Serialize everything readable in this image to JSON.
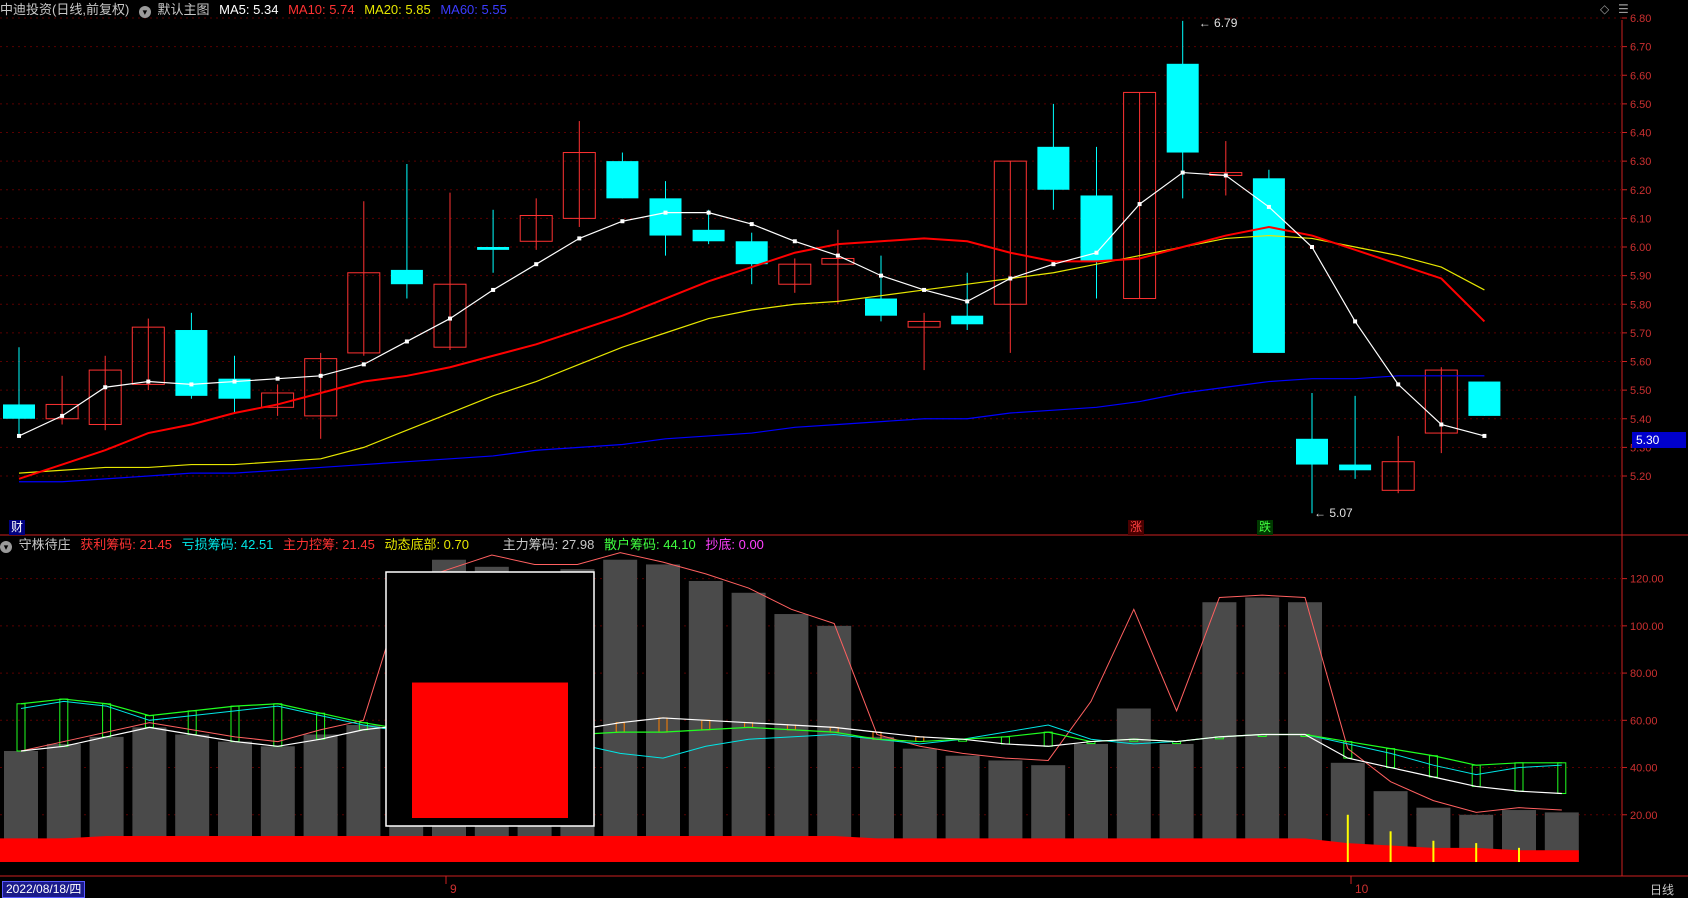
{
  "header": {
    "stock_title": "中迪投资(日线,前复权)",
    "template_name": "默认主图",
    "ma5": "MA5: 5.34",
    "ma10": "MA10: 5.74",
    "ma20": "MA20: 5.85",
    "ma60": "MA60: 5.55"
  },
  "indicator_header": {
    "name": "守株待庄",
    "profit": "获利筹码: 21.45",
    "loss": "亏损筹码: 42.51",
    "control": "主力控筹: 21.45",
    "bottom": "动态底部: 0.70",
    "main_chips": "主力筹码: 27.98",
    "retail_chips": "散户筹码: 44.10",
    "bottom_fish": "抄底: 0.00"
  },
  "colors": {
    "up": "#ff3232",
    "down": "#00ffff",
    "ma5": "#ffffff",
    "ma10": "#ff0000",
    "ma20": "#e6e600",
    "ma60": "#0000ff",
    "grid": "#5a0000",
    "axis": "#cc2020",
    "bar": "#4a4a4a"
  },
  "badges": {
    "cai": "财",
    "zhang": "涨",
    "die": "跌"
  },
  "corner_icons": [
    "diamond-icon",
    "menu-icon"
  ],
  "current_price": "5.30",
  "date_cursor": "2022/08/18/四",
  "month_labels": [
    "9",
    "10"
  ],
  "period": "日线",
  "chart_data": [
    {
      "type": "candlestick",
      "title": "中迪投资(日线,前复权)",
      "y_axis_ticks": [
        "6.80",
        "6.70",
        "6.60",
        "6.50",
        "6.40",
        "6.30",
        "6.20",
        "6.10",
        "6.00",
        "5.90",
        "5.80",
        "5.70",
        "5.60",
        "5.50",
        "5.40",
        "5.30",
        "5.20"
      ],
      "ylim": [
        5.14,
        6.82
      ],
      "high_label": "6.79",
      "low_label": "5.07",
      "ohlc": [
        [
          5.45,
          5.65,
          5.34,
          5.4
        ],
        [
          5.4,
          5.55,
          5.38,
          5.45
        ],
        [
          5.38,
          5.62,
          5.36,
          5.57
        ],
        [
          5.52,
          5.75,
          5.5,
          5.72
        ],
        [
          5.71,
          5.77,
          5.47,
          5.48
        ],
        [
          5.54,
          5.62,
          5.42,
          5.47
        ],
        [
          5.44,
          5.52,
          5.41,
          5.49
        ],
        [
          5.41,
          5.63,
          5.33,
          5.61
        ],
        [
          5.63,
          6.16,
          5.62,
          5.91
        ],
        [
          5.92,
          6.29,
          5.82,
          5.87
        ],
        [
          5.65,
          6.19,
          5.64,
          5.87
        ],
        [
          6.0,
          6.13,
          5.91,
          5.99
        ],
        [
          6.02,
          6.17,
          5.99,
          6.11
        ],
        [
          6.1,
          6.44,
          6.07,
          6.33
        ],
        [
          6.3,
          6.33,
          6.17,
          6.17
        ],
        [
          6.17,
          6.23,
          5.97,
          6.04
        ],
        [
          6.06,
          6.13,
          6.01,
          6.02
        ],
        [
          6.02,
          6.05,
          5.87,
          5.94
        ],
        [
          5.87,
          5.96,
          5.84,
          5.94
        ],
        [
          5.94,
          6.06,
          5.8,
          5.96
        ],
        [
          5.82,
          5.97,
          5.74,
          5.76
        ],
        [
          5.72,
          5.77,
          5.57,
          5.74
        ],
        [
          5.76,
          5.91,
          5.71,
          5.73
        ],
        [
          5.8,
          6.3,
          5.63,
          6.3
        ],
        [
          6.35,
          6.5,
          6.13,
          6.2
        ],
        [
          6.18,
          6.35,
          5.82,
          5.95
        ],
        [
          5.82,
          6.54,
          5.82,
          6.54
        ],
        [
          6.64,
          6.79,
          6.17,
          6.33
        ],
        [
          6.25,
          6.37,
          6.18,
          6.26
        ],
        [
          6.24,
          6.27,
          5.63,
          5.63
        ],
        [
          5.33,
          5.49,
          5.07,
          5.24
        ],
        [
          5.24,
          5.48,
          5.19,
          5.22
        ],
        [
          5.15,
          5.34,
          5.14,
          5.25
        ],
        [
          5.35,
          5.58,
          5.28,
          5.57
        ],
        [
          5.53,
          5.53,
          5.41,
          5.41
        ]
      ],
      "ma5": [
        5.34,
        5.41,
        5.51,
        5.53,
        5.52,
        5.53,
        5.54,
        5.55,
        5.59,
        5.67,
        5.75,
        5.85,
        5.94,
        6.03,
        6.09,
        6.12,
        6.12,
        6.08,
        6.02,
        5.97,
        5.9,
        5.85,
        5.81,
        5.89,
        5.94,
        5.98,
        6.15,
        6.26,
        6.25,
        6.14,
        6.0,
        5.74,
        5.52,
        5.38,
        5.34
      ],
      "ma10": [
        5.19,
        5.24,
        5.29,
        5.35,
        5.38,
        5.42,
        5.45,
        5.49,
        5.53,
        5.55,
        5.58,
        5.62,
        5.66,
        5.71,
        5.76,
        5.82,
        5.88,
        5.93,
        5.98,
        6.01,
        6.02,
        6.03,
        6.02,
        5.98,
        5.95,
        5.95,
        5.96,
        6.0,
        6.04,
        6.07,
        6.04,
        5.99,
        5.94,
        5.89,
        5.74
      ],
      "ma20": [
        5.21,
        5.22,
        5.23,
        5.23,
        5.24,
        5.24,
        5.25,
        5.26,
        5.3,
        5.36,
        5.42,
        5.48,
        5.53,
        5.59,
        5.65,
        5.7,
        5.75,
        5.78,
        5.8,
        5.81,
        5.83,
        5.85,
        5.87,
        5.89,
        5.91,
        5.94,
        5.97,
        6.0,
        6.03,
        6.04,
        6.03,
        6.0,
        5.97,
        5.93,
        5.85
      ],
      "ma60": [
        5.18,
        5.18,
        5.19,
        5.2,
        5.21,
        5.21,
        5.22,
        5.23,
        5.24,
        5.25,
        5.26,
        5.27,
        5.29,
        5.3,
        5.31,
        5.33,
        5.34,
        5.35,
        5.37,
        5.38,
        5.39,
        5.4,
        5.4,
        5.42,
        5.43,
        5.44,
        5.46,
        5.49,
        5.51,
        5.53,
        5.54,
        5.54,
        5.55,
        5.55,
        5.55
      ]
    },
    {
      "type": "bar",
      "title": "守株待庄",
      "y_axis_ticks": [
        "120.00",
        "100.00",
        "80.00",
        "60.00",
        "40.00",
        "20.00"
      ],
      "ylim": [
        0,
        135
      ],
      "gray_bars": [
        47,
        50,
        53,
        57,
        54,
        51,
        49,
        54,
        58,
        118,
        128,
        125,
        122,
        124,
        128,
        126,
        119,
        114,
        105,
        100,
        53,
        48,
        45,
        43,
        41,
        50,
        65,
        50,
        110,
        112,
        110,
        42,
        30,
        23,
        20,
        22,
        21
      ],
      "red_baseline": [
        10,
        10,
        11,
        11,
        11,
        11,
        11,
        11,
        11,
        11,
        11,
        11,
        11,
        11,
        11,
        11,
        11,
        11,
        11,
        11,
        10,
        10,
        10,
        10,
        10,
        10,
        10,
        10,
        10,
        10,
        10,
        8,
        7,
        6,
        6,
        5,
        5
      ],
      "yellow_spikes": [
        0,
        0,
        0,
        0,
        0,
        0,
        0,
        0,
        0,
        0,
        0,
        0,
        0,
        0,
        0,
        0,
        0,
        0,
        0,
        0,
        0,
        0,
        0,
        0,
        0,
        0,
        0,
        0,
        0,
        0,
        0,
        12,
        6,
        3,
        2,
        1,
        0
      ],
      "green_line": [
        67,
        69,
        67,
        62,
        64,
        66,
        67,
        63,
        59,
        56,
        55,
        54,
        53,
        54,
        55,
        55,
        56,
        57,
        56,
        55,
        52,
        51,
        52,
        53,
        55,
        51,
        52,
        51,
        53,
        54,
        54,
        51,
        48,
        45,
        41,
        42,
        42
      ],
      "white_line": [
        47,
        49,
        53,
        57,
        54,
        51,
        49,
        52,
        56,
        58,
        57,
        56,
        54,
        56,
        59,
        61,
        60,
        59,
        58,
        57,
        55,
        53,
        52,
        50,
        49,
        51,
        52,
        51,
        53,
        54,
        54,
        44,
        40,
        36,
        32,
        30,
        29
      ],
      "cyan_line": [
        65,
        68,
        66,
        60,
        62,
        64,
        66,
        62,
        58,
        55,
        54,
        53,
        52,
        50,
        46,
        44,
        49,
        52,
        53,
        54,
        52,
        50,
        52,
        55,
        58,
        52,
        50,
        51,
        53,
        54,
        54,
        50,
        46,
        41,
        37,
        40,
        41
      ],
      "red_peak_line": [
        47,
        51,
        55,
        59,
        56,
        53,
        51,
        56,
        60,
        118,
        124,
        130,
        126,
        126,
        131,
        127,
        122,
        116,
        107,
        101,
        54,
        49,
        46,
        44,
        43,
        68,
        107,
        64,
        112,
        113,
        112,
        48,
        34,
        26,
        21,
        23,
        22
      ],
      "highlight_box_value": 76
    }
  ]
}
